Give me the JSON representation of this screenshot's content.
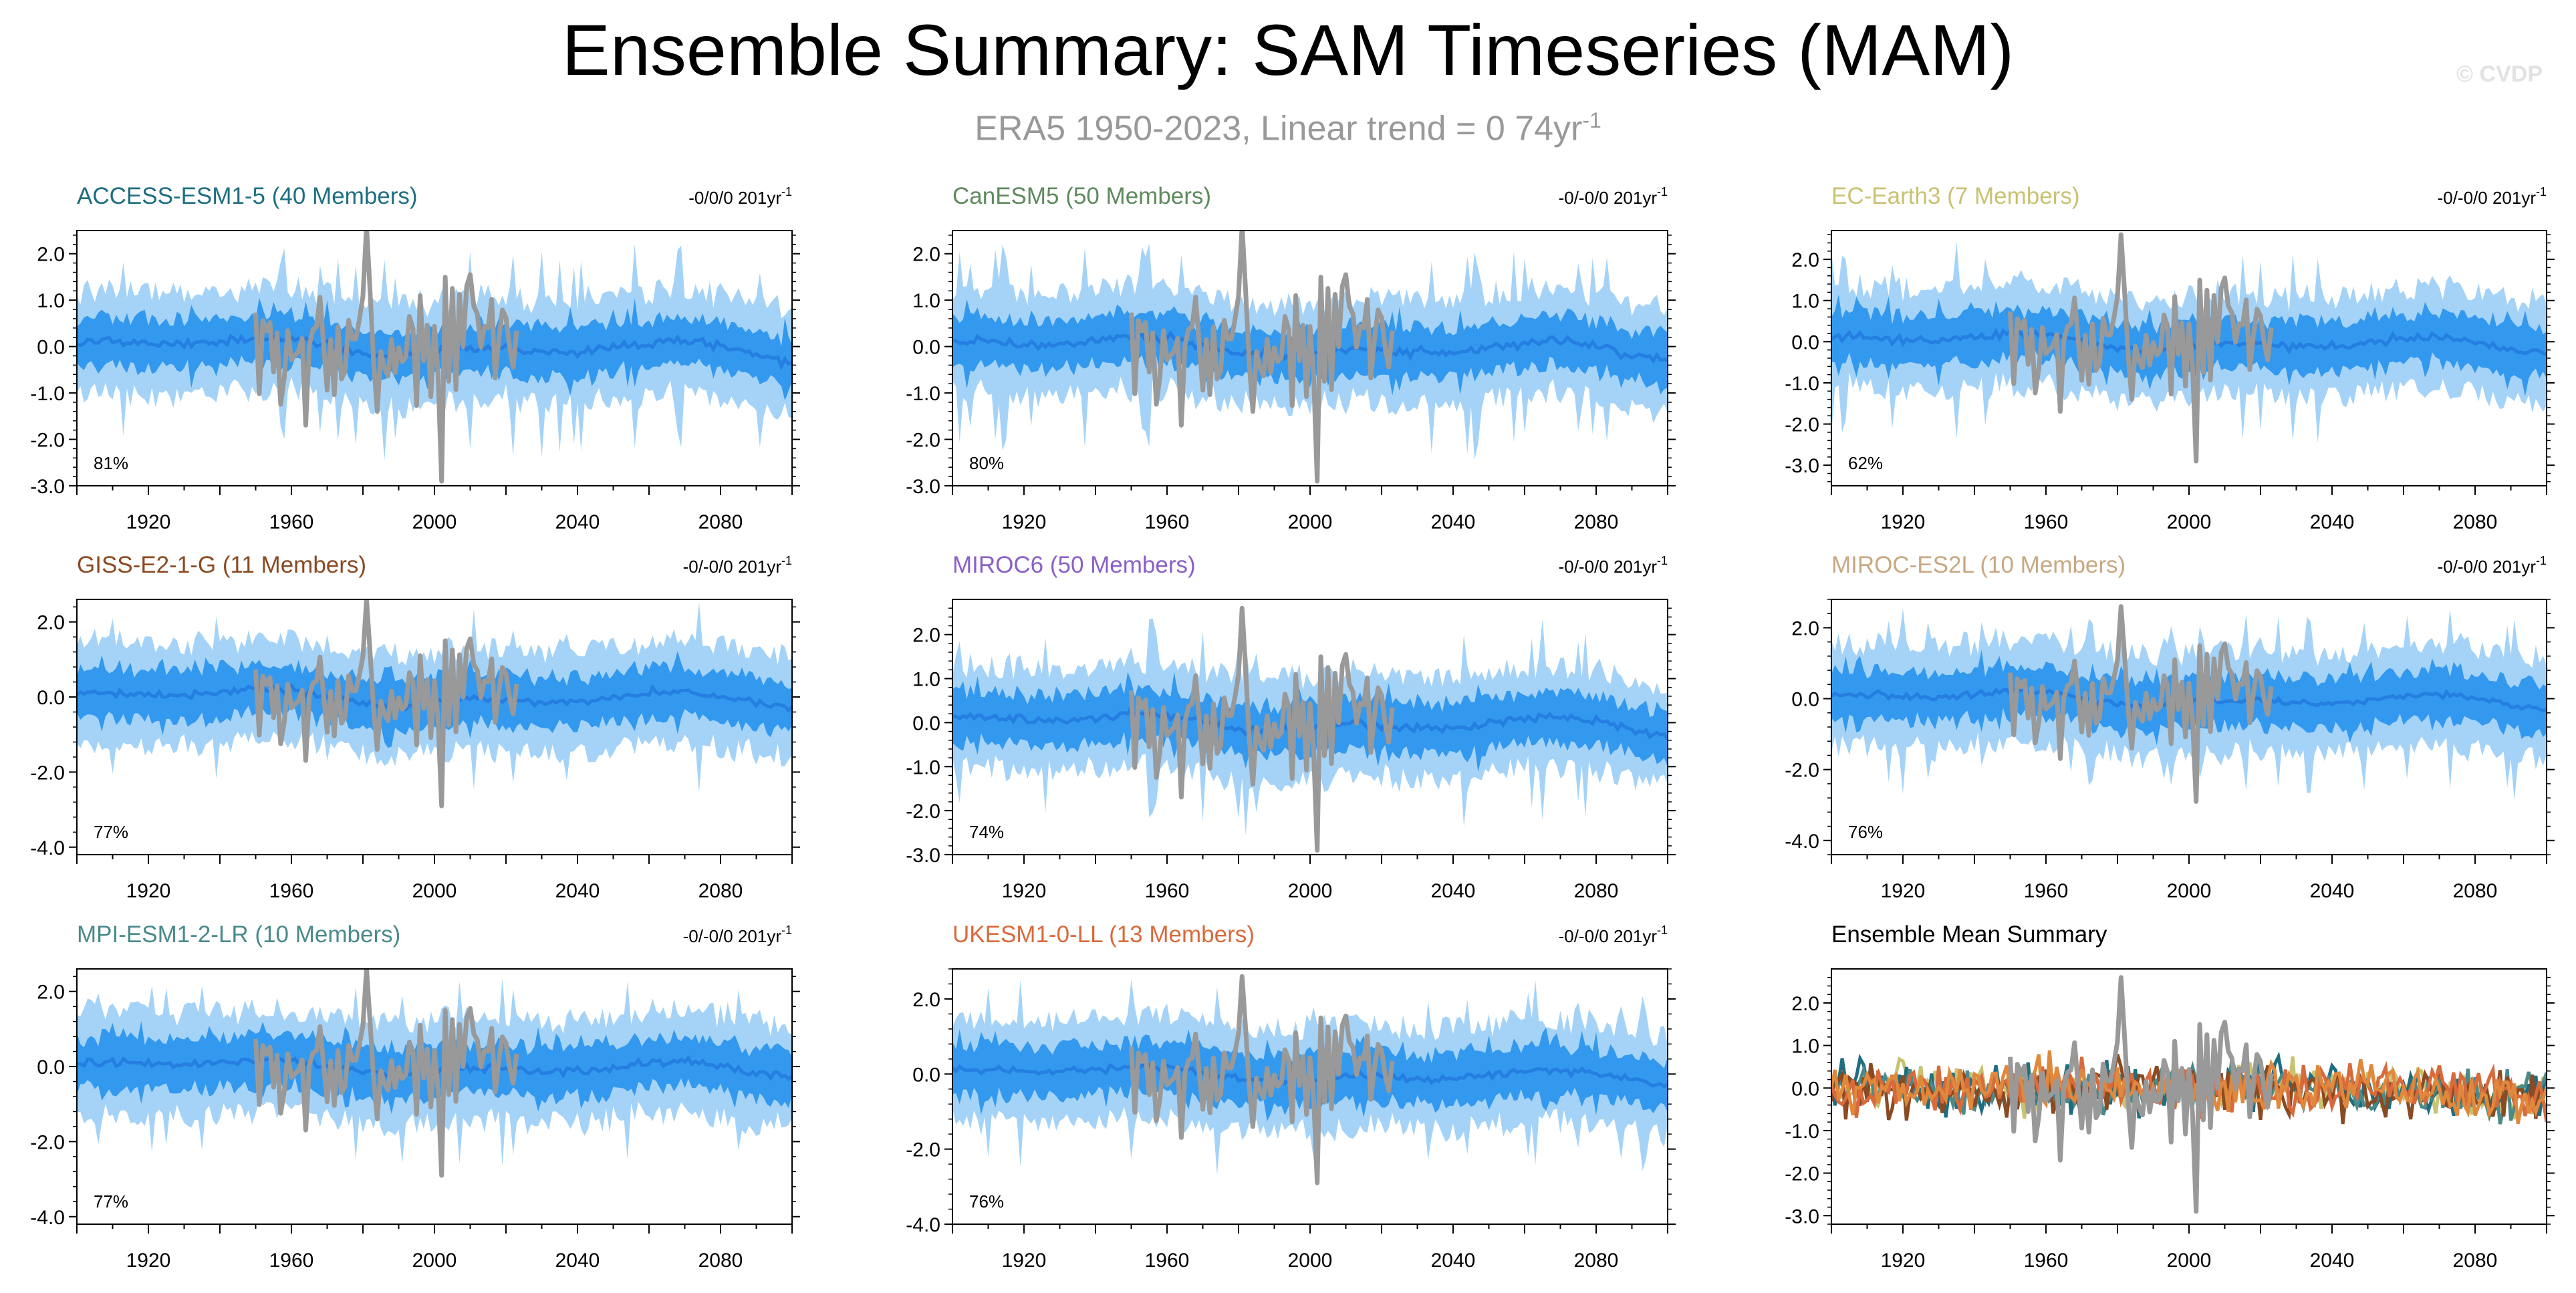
{
  "header": {
    "title": "Ensemble Summary: SAM Timeseries (MAM)",
    "subtitle_main": "ERA5 1950-2023, Linear trend = 0 74yr",
    "subtitle_exp": "-1",
    "watermark": "© CVDP"
  },
  "colors": {
    "observed": "#999999",
    "ensemble_outer": "#a5d3f8",
    "ensemble_inner": "#3399ee",
    "ensemble_mean": "#2277dd"
  },
  "chart_data": [
    {
      "type": "area",
      "panel": "ACCESS-ESM1-5",
      "title": "ACCESS-ESM1-5 (40 Members)",
      "title_color": "#1e6e80",
      "trend_main": "-0/0/0 201yr",
      "trend_exp": "-1",
      "percent": "81%",
      "xlim": [
        1900,
        2100
      ],
      "ylim": [
        -3.0,
        2.5
      ],
      "yticks": [
        "2.0",
        "1.0",
        "0.0",
        "-1.0",
        "-2.0",
        "-3.0"
      ],
      "ytick_values": [
        2,
        1,
        0,
        -1,
        -2,
        -3
      ],
      "xticks": [
        "1920",
        "1960",
        "2000",
        "2040",
        "2080"
      ],
      "xtick_values": [
        1920,
        1960,
        2000,
        2040,
        2080
      ],
      "series": [
        {
          "role": "ensemble-10-90"
        },
        {
          "role": "ensemble-25-75"
        },
        {
          "role": "ensemble-mean"
        },
        {
          "role": "observed",
          "x_range": [
            1950,
            2023
          ]
        }
      ]
    },
    {
      "type": "area",
      "panel": "CanESM5",
      "title": "CanESM5 (50 Members)",
      "title_color": "#5e8a5e",
      "trend_main": "-0/-0/0 201yr",
      "trend_exp": "-1",
      "percent": "80%",
      "xlim": [
        1900,
        2100
      ],
      "ylim": [
        -3.0,
        2.5
      ],
      "yticks": [
        "2.0",
        "1.0",
        "0.0",
        "-1.0",
        "-2.0",
        "-3.0"
      ],
      "ytick_values": [
        2,
        1,
        0,
        -1,
        -2,
        -3
      ],
      "xticks": [
        "1920",
        "1960",
        "2000",
        "2040",
        "2080"
      ],
      "xtick_values": [
        1920,
        1960,
        2000,
        2040,
        2080
      ],
      "series": [
        {
          "role": "ensemble-10-90"
        },
        {
          "role": "ensemble-25-75"
        },
        {
          "role": "ensemble-mean"
        },
        {
          "role": "observed",
          "x_range": [
            1950,
            2023
          ]
        }
      ]
    },
    {
      "type": "area",
      "panel": "EC-Earth3",
      "title": "EC-Earth3 (7 Members)",
      "title_color": "#c8c272",
      "trend_main": "-0/-0/0 201yr",
      "trend_exp": "-1",
      "percent": "62%",
      "xlim": [
        1900,
        2100
      ],
      "ylim": [
        -3.5,
        2.7
      ],
      "yticks": [
        "2.0",
        "1.0",
        "0.0",
        "-1.0",
        "-2.0",
        "-3.0"
      ],
      "ytick_values": [
        2,
        1,
        0,
        -1,
        -2,
        -3
      ],
      "xticks": [
        "1920",
        "1960",
        "2000",
        "2040",
        "2080"
      ],
      "xtick_values": [
        1920,
        1960,
        2000,
        2040,
        2080
      ],
      "series": [
        {
          "role": "ensemble-10-90"
        },
        {
          "role": "ensemble-25-75"
        },
        {
          "role": "ensemble-mean"
        },
        {
          "role": "observed",
          "x_range": [
            1950,
            2023
          ]
        }
      ]
    },
    {
      "type": "area",
      "panel": "GISS-E2-1-G",
      "title": "GISS-E2-1-G (11 Members)",
      "title_color": "#8a4a22",
      "trend_main": "-0/-0/0 201yr",
      "trend_exp": "-1",
      "percent": "77%",
      "xlim": [
        1900,
        2100
      ],
      "ylim": [
        -4.2,
        2.6
      ],
      "yticks": [
        "2.0",
        "0.0",
        "-2.0",
        "-4.0"
      ],
      "ytick_values": [
        2,
        0,
        -2,
        -4
      ],
      "xticks": [
        "1920",
        "1960",
        "2000",
        "2040",
        "2080"
      ],
      "xtick_values": [
        1920,
        1960,
        2000,
        2040,
        2080
      ],
      "series": [
        {
          "role": "ensemble-10-90"
        },
        {
          "role": "ensemble-25-75"
        },
        {
          "role": "ensemble-mean"
        },
        {
          "role": "observed",
          "x_range": [
            1950,
            2023
          ]
        }
      ]
    },
    {
      "type": "area",
      "panel": "MIROC6",
      "title": "MIROC6 (50 Members)",
      "title_color": "#8a5fc8",
      "trend_main": "-0/-0/0 201yr",
      "trend_exp": "-1",
      "percent": "74%",
      "xlim": [
        1900,
        2100
      ],
      "ylim": [
        -3.0,
        2.8
      ],
      "yticks": [
        "2.0",
        "1.0",
        "0.0",
        "-1.0",
        "-2.0",
        "-3.0"
      ],
      "ytick_values": [
        2,
        1,
        0,
        -1,
        -2,
        -3
      ],
      "xticks": [
        "1920",
        "1960",
        "2000",
        "2040",
        "2080"
      ],
      "xtick_values": [
        1920,
        1960,
        2000,
        2040,
        2080
      ],
      "series": [
        {
          "role": "ensemble-10-90"
        },
        {
          "role": "ensemble-25-75"
        },
        {
          "role": "ensemble-mean"
        },
        {
          "role": "observed",
          "x_range": [
            1950,
            2023
          ]
        }
      ]
    },
    {
      "type": "area",
      "panel": "MIROC-ES2L",
      "title": "MIROC-ES2L (10 Members)",
      "title_color": "#c8a882",
      "trend_main": "-0/-0/0 201yr",
      "trend_exp": "-1",
      "percent": "76%",
      "xlim": [
        1900,
        2100
      ],
      "ylim": [
        -4.4,
        2.8
      ],
      "yticks": [
        "2.0",
        "0.0",
        "-2.0",
        "-4.0"
      ],
      "ytick_values": [
        2,
        0,
        -2,
        -4
      ],
      "xticks": [
        "1920",
        "1960",
        "2000",
        "2040",
        "2080"
      ],
      "xtick_values": [
        1920,
        1960,
        2000,
        2040,
        2080
      ],
      "series": [
        {
          "role": "ensemble-10-90"
        },
        {
          "role": "ensemble-25-75"
        },
        {
          "role": "ensemble-mean"
        },
        {
          "role": "observed",
          "x_range": [
            1950,
            2023
          ]
        }
      ]
    },
    {
      "type": "area",
      "panel": "MPI-ESM1-2-LR",
      "title": "MPI-ESM1-2-LR (10 Members)",
      "title_color": "#4a8a8a",
      "trend_main": "-0/-0/0 201yr",
      "trend_exp": "-1",
      "percent": "77%",
      "xlim": [
        1900,
        2100
      ],
      "ylim": [
        -4.2,
        2.6
      ],
      "yticks": [
        "2.0",
        "0.0",
        "-2.0",
        "-4.0"
      ],
      "ytick_values": [
        2,
        0,
        -2,
        -4
      ],
      "xticks": [
        "1920",
        "1960",
        "2000",
        "2040",
        "2080"
      ],
      "xtick_values": [
        1920,
        1960,
        2000,
        2040,
        2080
      ],
      "series": [
        {
          "role": "ensemble-10-90"
        },
        {
          "role": "ensemble-25-75"
        },
        {
          "role": "ensemble-mean"
        },
        {
          "role": "observed",
          "x_range": [
            1950,
            2023
          ]
        }
      ]
    },
    {
      "type": "area",
      "panel": "UKESM1-0-LL",
      "title": "UKESM1-0-LL (13 Members)",
      "title_color": "#d86a3c",
      "trend_main": "-0/-0/0 201yr",
      "trend_exp": "-1",
      "percent": "76%",
      "xlim": [
        1900,
        2100
      ],
      "ylim": [
        -4.0,
        2.8
      ],
      "yticks": [
        "2.0",
        "0.0",
        "-2.0",
        "-4.0"
      ],
      "ytick_values": [
        2,
        0,
        -2,
        -4
      ],
      "xticks": [
        "1920",
        "1960",
        "2000",
        "2040",
        "2080"
      ],
      "xtick_values": [
        1920,
        1960,
        2000,
        2040,
        2080
      ],
      "series": [
        {
          "role": "ensemble-10-90"
        },
        {
          "role": "ensemble-25-75"
        },
        {
          "role": "ensemble-mean"
        },
        {
          "role": "observed",
          "x_range": [
            1950,
            2023
          ]
        }
      ]
    },
    {
      "type": "line",
      "panel": "Ensemble Mean Summary",
      "title": "Ensemble Mean Summary",
      "title_color": "#000000",
      "xlim": [
        1900,
        2100
      ],
      "ylim": [
        -3.2,
        2.8
      ],
      "yticks": [
        "2.0",
        "1.0",
        "0.0",
        "-1.0",
        "-2.0",
        "-3.0"
      ],
      "ytick_values": [
        2,
        1,
        0,
        -1,
        -2,
        -3
      ],
      "xticks": [
        "1920",
        "1960",
        "2000",
        "2040",
        "2080"
      ],
      "xtick_values": [
        1920,
        1960,
        2000,
        2040,
        2080
      ],
      "series": [
        {
          "role": "model-mean",
          "color": "#c8c272"
        },
        {
          "role": "model-mean",
          "color": "#1e6e80"
        },
        {
          "role": "model-mean",
          "color": "#4a8a8a"
        },
        {
          "role": "model-mean",
          "color": "#8a4a22"
        },
        {
          "role": "model-mean",
          "color": "#d86a3c"
        },
        {
          "role": "model-mean",
          "color": "#e0883c"
        },
        {
          "role": "observed",
          "color": "#999999",
          "x_range": [
            1950,
            2023
          ]
        }
      ]
    }
  ]
}
